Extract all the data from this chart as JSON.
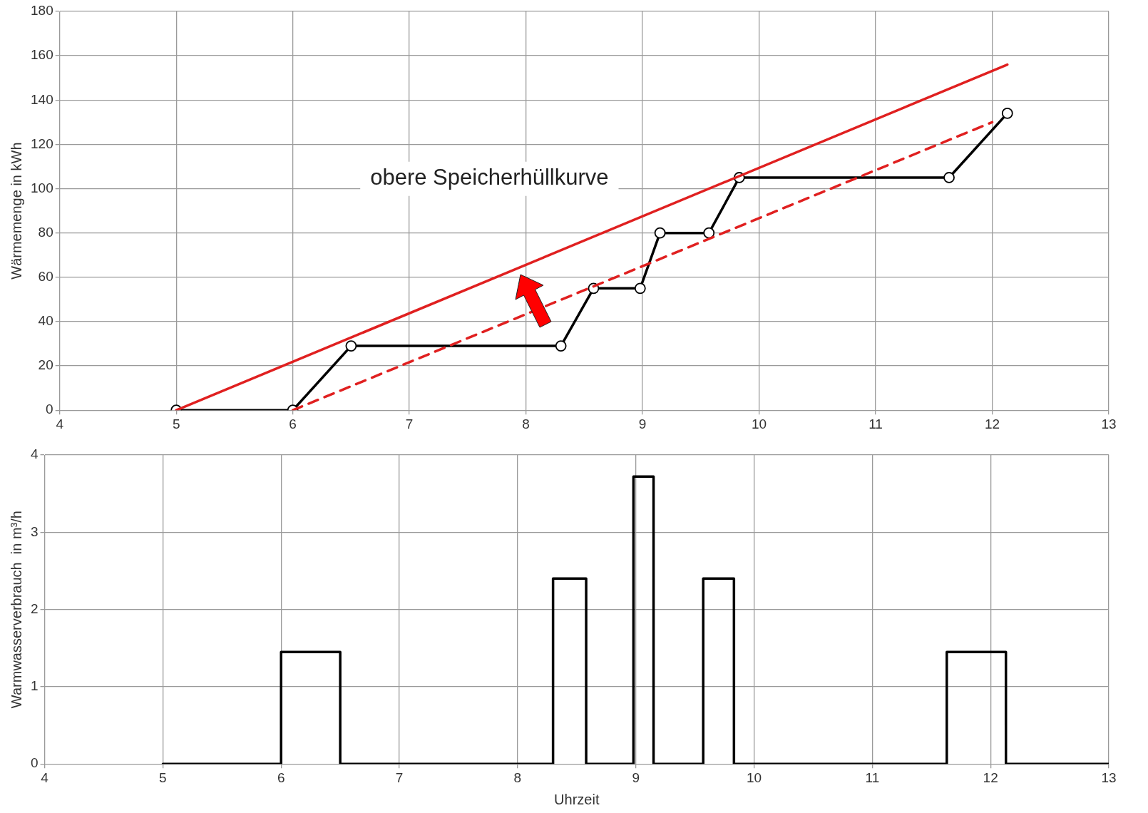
{
  "chart_data": [
    {
      "type": "line",
      "ylabel": "Wärmemenge in kWh",
      "xlim": [
        4,
        13
      ],
      "xticks": [
        4,
        5,
        6,
        7,
        8,
        9,
        10,
        11,
        12,
        13
      ],
      "ylim": [
        0,
        180
      ],
      "yticks": [
        0,
        20,
        40,
        60,
        80,
        100,
        120,
        140,
        160,
        180
      ],
      "grid": true,
      "annotations": [
        "obere Speicherhüllkurve"
      ],
      "series": [
        {
          "color": "#e02020",
          "x": [
            5,
            12.13
          ],
          "values": [
            0,
            156
          ],
          "marker": "none",
          "line_style": "solid"
        },
        {
          "color": "#e02020",
          "x": [
            6,
            12.0
          ],
          "values": [
            0,
            130
          ],
          "marker": "none",
          "line_style": "dashed"
        },
        {
          "color": "#000000",
          "x": [
            5,
            6,
            6.5,
            8.3,
            8.58,
            8.98,
            9.15,
            9.57,
            9.83,
            11.63,
            12.13
          ],
          "values": [
            0,
            0,
            29,
            29,
            55,
            55,
            80,
            80,
            105,
            105,
            134
          ],
          "marker": "circle",
          "line_style": "solid"
        }
      ]
    },
    {
      "type": "step",
      "xlabel": "Uhrzeit",
      "ylabel": "Warmwasserverbrauch  in m³/h",
      "xlim": [
        4,
        13
      ],
      "xticks": [
        4,
        5,
        6,
        7,
        8,
        9,
        10,
        11,
        12,
        13
      ],
      "ylim": [
        0,
        4
      ],
      "yticks": [
        0,
        1,
        2,
        3,
        4
      ],
      "grid": true,
      "series": [
        {
          "color": "#000000",
          "x": [
            5,
            6,
            6.5,
            8.3,
            8.58,
            8.98,
            9.15,
            9.57,
            9.83,
            11.63,
            12.13,
            13
          ],
          "values": [
            0,
            1.45,
            0,
            2.4,
            0,
            3.72,
            0,
            2.4,
            0,
            1.45,
            0,
            0
          ],
          "marker": "none",
          "line_style": "solid"
        }
      ]
    }
  ]
}
